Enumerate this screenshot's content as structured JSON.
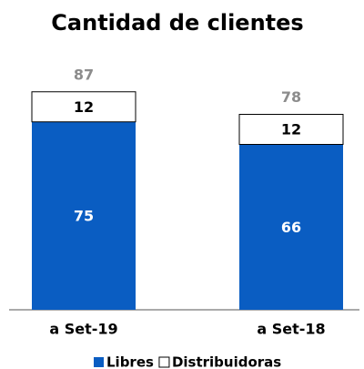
{
  "chart_data": {
    "type": "stacked-bar",
    "title": "Cantidad de clientes",
    "categories": [
      "a Set-19",
      "a Set-18"
    ],
    "series": [
      {
        "name": "Libres",
        "color": "#0a5dc2",
        "values": [
          75,
          66
        ]
      },
      {
        "name": "Distribuidoras",
        "color": "#ffffff",
        "values": [
          12,
          12
        ]
      }
    ],
    "totals": [
      87,
      78
    ],
    "legend": "bottom"
  }
}
